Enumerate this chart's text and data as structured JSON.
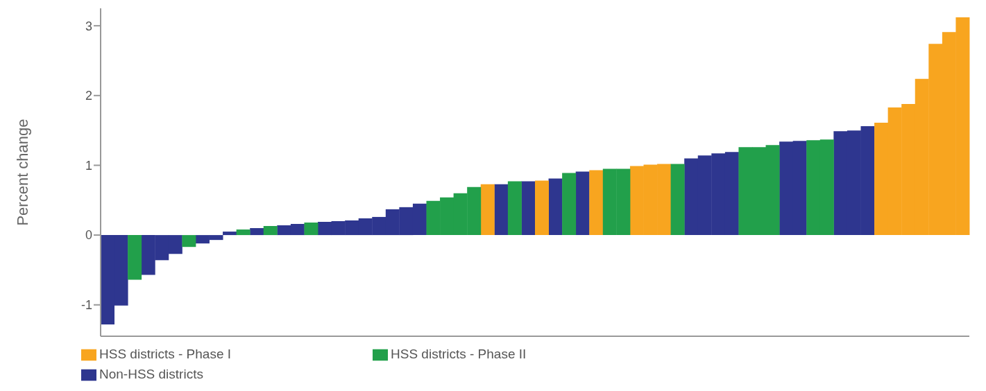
{
  "chart_data": {
    "type": "bar",
    "ylabel": "Percent change",
    "categories": [
      null,
      null,
      null,
      null,
      null,
      null,
      null,
      null,
      null,
      null,
      null,
      null,
      null,
      null,
      null,
      null,
      null,
      null,
      null,
      null,
      null,
      null,
      null,
      null,
      null,
      null,
      null,
      null,
      null,
      null,
      null,
      null,
      null,
      null,
      null,
      null,
      null,
      null,
      null,
      null,
      null,
      null,
      null,
      null,
      null,
      null,
      null,
      null,
      null,
      null,
      null,
      null,
      null,
      null,
      null,
      null,
      null,
      null,
      null,
      null,
      null,
      null,
      null,
      null
    ],
    "stacked": true,
    "series": [
      {
        "name": "Non-HSS districts",
        "color": "#2e368f",
        "values": [
          -1.28,
          -1.01,
          null,
          -0.57,
          -0.36,
          -0.27,
          null,
          -0.12,
          -0.07,
          0.05,
          null,
          0.1,
          null,
          0.14,
          0.16,
          null,
          0.19,
          0.2,
          0.21,
          0.24,
          0.26,
          0.37,
          0.4,
          0.45,
          null,
          null,
          null,
          null,
          null,
          0.73,
          null,
          0.77,
          null,
          0.81,
          null,
          0.91,
          null,
          null,
          null,
          null,
          null,
          null,
          null,
          1.1,
          1.14,
          1.17,
          1.19,
          null,
          null,
          null,
          1.34,
          1.35,
          null,
          null,
          1.49,
          1.5,
          1.56,
          null,
          null,
          null,
          null,
          null,
          null,
          null
        ]
      },
      {
        "name": "HSS districts - Phase I",
        "color": "#f8a51f",
        "values": [
          null,
          null,
          null,
          null,
          null,
          null,
          null,
          null,
          null,
          null,
          null,
          null,
          null,
          null,
          null,
          null,
          null,
          null,
          null,
          null,
          null,
          null,
          null,
          null,
          null,
          null,
          null,
          null,
          0.73,
          null,
          null,
          null,
          0.78,
          null,
          null,
          null,
          0.93,
          null,
          null,
          0.99,
          1.01,
          1.02,
          null,
          null,
          null,
          null,
          null,
          null,
          null,
          null,
          null,
          null,
          null,
          null,
          null,
          null,
          null,
          1.61,
          1.83,
          1.88,
          2.24,
          2.74,
          2.91,
          3.12
        ]
      },
      {
        "name": "HSS districts - Phase II",
        "color": "#22a04b",
        "values": [
          null,
          null,
          -0.64,
          null,
          null,
          null,
          -0.17,
          null,
          null,
          null,
          0.08,
          null,
          0.13,
          null,
          null,
          0.18,
          null,
          null,
          null,
          null,
          null,
          null,
          null,
          null,
          0.49,
          0.54,
          0.6,
          0.69,
          null,
          null,
          0.77,
          null,
          null,
          null,
          0.89,
          null,
          null,
          0.95,
          0.95,
          null,
          null,
          null,
          1.02,
          null,
          null,
          null,
          null,
          1.26,
          1.26,
          1.29,
          null,
          null,
          1.36,
          1.37,
          null,
          null,
          null,
          null,
          null,
          null,
          null,
          null,
          null,
          null
        ]
      }
    ],
    "ylim": [
      -1.45,
      3.25
    ],
    "yticks": [
      -1,
      0,
      1,
      2,
      3
    ],
    "legend": "bottom"
  }
}
